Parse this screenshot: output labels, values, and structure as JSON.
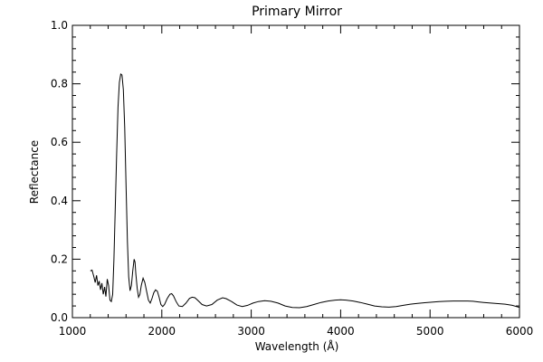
{
  "chart_data": {
    "type": "line",
    "title": "Primary Mirror",
    "xlabel": "Wavelength (Å)",
    "ylabel": "Reflectance",
    "xlim": [
      1000,
      6000
    ],
    "ylim": [
      0.0,
      1.0
    ],
    "x_ticks": [
      1000,
      2000,
      3000,
      4000,
      5000,
      6000
    ],
    "x_tick_labels": [
      "1000",
      "2000",
      "3000",
      "4000",
      "5000",
      "6000"
    ],
    "y_ticks": [
      0.0,
      0.2,
      0.4,
      0.6,
      0.8,
      1.0
    ],
    "y_tick_labels": [
      "0.0",
      "0.2",
      "0.4",
      "0.6",
      "0.8",
      "1.0"
    ],
    "grid": false,
    "series": [
      {
        "color": "#000000",
        "x": [
          1200,
          1220,
          1240,
          1255,
          1270,
          1285,
          1300,
          1315,
          1330,
          1345,
          1360,
          1375,
          1390,
          1405,
          1420,
          1435,
          1450,
          1465,
          1480,
          1495,
          1510,
          1525,
          1540,
          1555,
          1570,
          1585,
          1600,
          1615,
          1630,
          1645,
          1660,
          1675,
          1690,
          1700,
          1710,
          1725,
          1740,
          1755,
          1770,
          1790,
          1810,
          1830,
          1850,
          1870,
          1890,
          1910,
          1930,
          1950,
          1970,
          1990,
          2010,
          2030,
          2060,
          2090,
          2110,
          2130,
          2160,
          2190,
          2230,
          2270,
          2310,
          2340,
          2370,
          2400,
          2450,
          2500,
          2560,
          2620,
          2680,
          2720,
          2780,
          2840,
          2900,
          2960,
          3020,
          3080,
          3150,
          3220,
          3300,
          3380,
          3460,
          3540,
          3620,
          3700,
          3780,
          3860,
          3940,
          4000,
          4060,
          4140,
          4220,
          4300,
          4380,
          4460,
          4540,
          4620,
          4700,
          4780,
          4860,
          4940,
          5020,
          5100,
          5180,
          5260,
          5340,
          5420,
          5480,
          5540,
          5600,
          5680,
          5760,
          5840,
          5920,
          6000
        ],
        "y": [
          0.16,
          0.163,
          0.14,
          0.12,
          0.145,
          0.11,
          0.125,
          0.095,
          0.118,
          0.08,
          0.105,
          0.072,
          0.132,
          0.11,
          0.06,
          0.055,
          0.08,
          0.2,
          0.38,
          0.56,
          0.72,
          0.805,
          0.833,
          0.83,
          0.78,
          0.65,
          0.45,
          0.26,
          0.14,
          0.092,
          0.11,
          0.16,
          0.2,
          0.19,
          0.15,
          0.1,
          0.07,
          0.08,
          0.11,
          0.135,
          0.12,
          0.09,
          0.06,
          0.05,
          0.065,
          0.085,
          0.095,
          0.09,
          0.07,
          0.045,
          0.038,
          0.045,
          0.065,
          0.08,
          0.082,
          0.075,
          0.055,
          0.04,
          0.038,
          0.05,
          0.066,
          0.07,
          0.068,
          0.06,
          0.045,
          0.04,
          0.045,
          0.06,
          0.068,
          0.065,
          0.055,
          0.043,
          0.038,
          0.042,
          0.05,
          0.055,
          0.058,
          0.056,
          0.05,
          0.04,
          0.035,
          0.034,
          0.038,
          0.045,
          0.052,
          0.057,
          0.06,
          0.061,
          0.06,
          0.057,
          0.052,
          0.046,
          0.04,
          0.037,
          0.036,
          0.038,
          0.042,
          0.046,
          0.049,
          0.051,
          0.053,
          0.055,
          0.056,
          0.057,
          0.057,
          0.057,
          0.056,
          0.054,
          0.052,
          0.05,
          0.048,
          0.046,
          0.042,
          0.035
        ]
      }
    ]
  }
}
